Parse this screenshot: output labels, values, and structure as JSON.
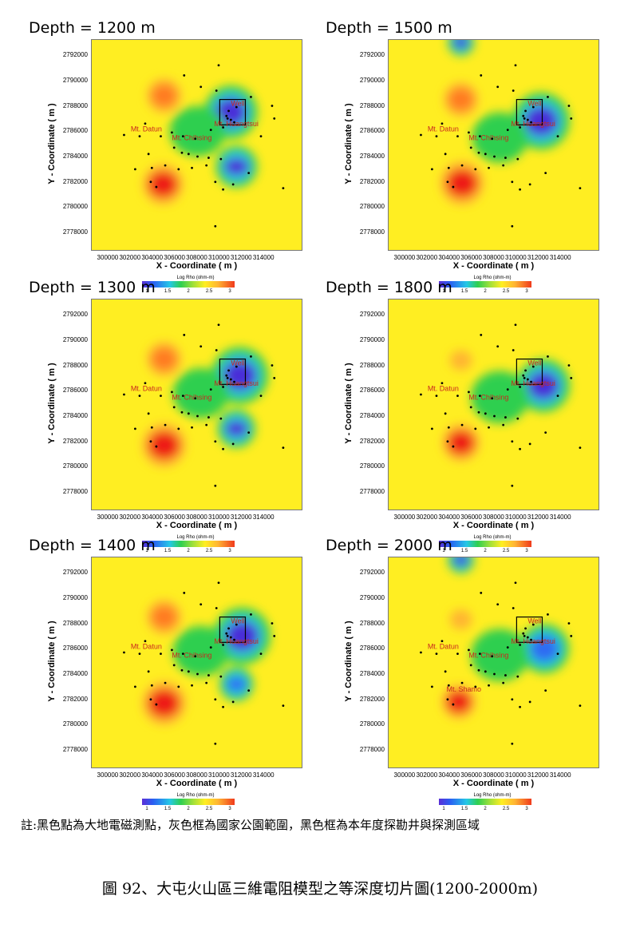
{
  "chart_data": [
    {
      "type": "heatmap",
      "title": "Depth = 1200 m",
      "blobs": [
        {
          "x": 304900,
          "y": 2781800,
          "r": 1300,
          "logrho": 3.0
        },
        {
          "x": 305000,
          "y": 2788800,
          "r": 1100,
          "logrho": 2.8
        },
        {
          "x": 311000,
          "y": 2787500,
          "r": 1400,
          "logrho": 1.0
        },
        {
          "x": 311500,
          "y": 2783200,
          "r": 1100,
          "logrho": 1.0
        },
        {
          "x": 308000,
          "y": 2786000,
          "r": 2500,
          "logrho": 1.9
        }
      ]
    },
    {
      "type": "heatmap",
      "title": "Depth = 1500 m",
      "blobs": [
        {
          "x": 305100,
          "y": 2781900,
          "r": 1400,
          "logrho": 3.0
        },
        {
          "x": 305000,
          "y": 2788500,
          "r": 1100,
          "logrho": 2.7
        },
        {
          "x": 312200,
          "y": 2786800,
          "r": 1500,
          "logrho": 1.0
        },
        {
          "x": 305000,
          "y": 2793000,
          "r": 700,
          "logrho": 1.0
        },
        {
          "x": 308500,
          "y": 2785500,
          "r": 2500,
          "logrho": 1.9
        }
      ]
    },
    {
      "type": "heatmap",
      "title": "Depth = 1300 m",
      "blobs": [
        {
          "x": 305000,
          "y": 2781700,
          "r": 1400,
          "logrho": 3.0
        },
        {
          "x": 305000,
          "y": 2788500,
          "r": 1100,
          "logrho": 2.7
        },
        {
          "x": 311800,
          "y": 2787200,
          "r": 1500,
          "logrho": 1.0
        },
        {
          "x": 311500,
          "y": 2783000,
          "r": 1000,
          "logrho": 1.0
        },
        {
          "x": 308300,
          "y": 2785800,
          "r": 2500,
          "logrho": 1.9
        }
      ]
    },
    {
      "type": "heatmap",
      "title": "Depth = 1800 m",
      "blobs": [
        {
          "x": 305000,
          "y": 2781900,
          "r": 1200,
          "logrho": 3.0
        },
        {
          "x": 305000,
          "y": 2788400,
          "r": 1000,
          "logrho": 2.6
        },
        {
          "x": 312400,
          "y": 2786400,
          "r": 1400,
          "logrho": 1.0
        },
        {
          "x": 308500,
          "y": 2785500,
          "r": 2600,
          "logrho": 1.9
        }
      ]
    },
    {
      "type": "heatmap",
      "title": "Depth = 1400 m",
      "blobs": [
        {
          "x": 305000,
          "y": 2781700,
          "r": 1400,
          "logrho": 3.0
        },
        {
          "x": 305000,
          "y": 2788500,
          "r": 1100,
          "logrho": 2.7
        },
        {
          "x": 312000,
          "y": 2787000,
          "r": 1500,
          "logrho": 1.0
        },
        {
          "x": 311500,
          "y": 2783200,
          "r": 900,
          "logrho": 1.5
        },
        {
          "x": 308300,
          "y": 2785800,
          "r": 2500,
          "logrho": 1.9
        }
      ]
    },
    {
      "type": "heatmap",
      "title": "Depth = 2000 m",
      "blobs": [
        {
          "x": 304800,
          "y": 2781800,
          "r": 1100,
          "logrho": 3.0
        },
        {
          "x": 305000,
          "y": 2788300,
          "r": 1000,
          "logrho": 2.5
        },
        {
          "x": 312500,
          "y": 2786000,
          "r": 1300,
          "logrho": 1.3
        },
        {
          "x": 305000,
          "y": 2793000,
          "r": 700,
          "logrho": 1.0
        },
        {
          "x": 308500,
          "y": 2785500,
          "r": 2600,
          "logrho": 1.9
        }
      ]
    }
  ],
  "axes": {
    "xlabel": "X - Coordinate ( m )",
    "ylabel": "Y - Coordinate ( m )",
    "xlim": [
      298500,
      317500
    ],
    "ylim": [
      2776500,
      2793200
    ],
    "xticks": [
      "300000",
      "302000",
      "304000",
      "306000",
      "308000",
      "310000",
      "312000",
      "314000"
    ],
    "yticks": [
      "2792000",
      "2790000",
      "2788000",
      "2786000",
      "2784000",
      "2782000",
      "2780000",
      "2778000"
    ]
  },
  "colorbar": {
    "title": "Log Rho (ohm-m)",
    "ticks": [
      "1",
      "1.5",
      "2",
      "2.5",
      "3"
    ],
    "range": [
      1,
      3
    ]
  },
  "labels": {
    "well": "Well",
    "datun": "Mt. Datun",
    "chihsing": "Mt. Chihsing",
    "huangtsui": "Mt. Huangtsui",
    "shamo": "Mt. Shamo"
  },
  "well_box": {
    "x0": 310000,
    "x1": 312300,
    "y0": 2786500,
    "y1": 2788500
  },
  "stations": [
    [
      309900,
      2791200
    ],
    [
      306800,
      2790400
    ],
    [
      308300,
      2789500
    ],
    [
      309700,
      2789200
    ],
    [
      312800,
      2788700
    ],
    [
      314700,
      2788000
    ],
    [
      314900,
      2787000
    ],
    [
      303300,
      2786600
    ],
    [
      301400,
      2785700
    ],
    [
      302800,
      2785600
    ],
    [
      304700,
      2785600
    ],
    [
      305700,
      2785900
    ],
    [
      306700,
      2785600
    ],
    [
      307800,
      2785400
    ],
    [
      309200,
      2786100
    ],
    [
      310300,
      2786300
    ],
    [
      311300,
      2786700
    ],
    [
      313700,
      2785600
    ],
    [
      303600,
      2784200
    ],
    [
      305900,
      2784700
    ],
    [
      306600,
      2784300
    ],
    [
      307200,
      2784200
    ],
    [
      308000,
      2784000
    ],
    [
      309000,
      2783900
    ],
    [
      310100,
      2783800
    ],
    [
      305100,
      2783300
    ],
    [
      306300,
      2783000
    ],
    [
      307500,
      2783100
    ],
    [
      308800,
      2783300
    ],
    [
      302400,
      2783000
    ],
    [
      303900,
      2783100
    ],
    [
      309600,
      2782000
    ],
    [
      311200,
      2781800
    ],
    [
      312600,
      2782700
    ],
    [
      303800,
      2782000
    ],
    [
      304300,
      2781600
    ],
    [
      310300,
      2781400
    ],
    [
      315700,
      2781500
    ],
    [
      309600,
      2778500
    ],
    [
      310600,
      2787200
    ],
    [
      311000,
      2786900
    ],
    [
      310800,
      2787600
    ],
    [
      311500,
      2787900
    ],
    [
      310700,
      2787000
    ]
  ],
  "note": "註:黑色點為大地電磁測點，灰色框為國家公園範圍，黑色框為本年度探勘井與探測區域",
  "caption": "圖 92、大屯火山區三維電阻模型之等深度切片圖(1200-2000m)"
}
